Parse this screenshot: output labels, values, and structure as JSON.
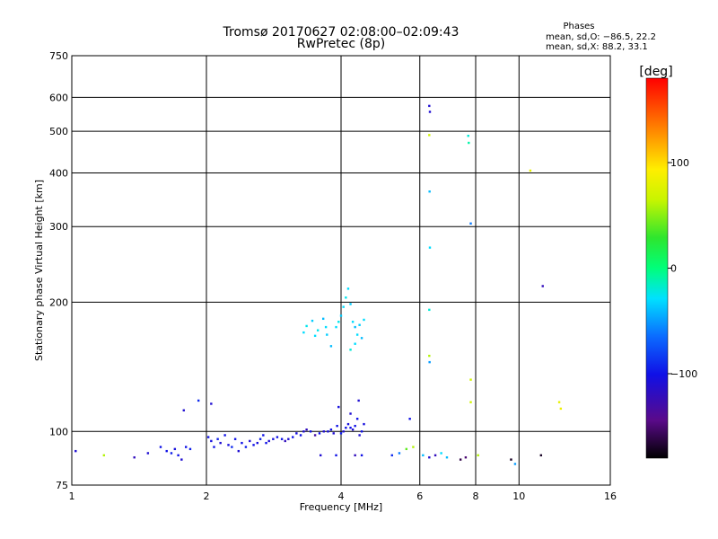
{
  "chart_data": {
    "type": "scatter",
    "title_line1": "Tromsø 20170627 02:08:00–02:09:43",
    "title_line2": "RwPretec (8p)",
    "xlabel": "Frequency [MHz]",
    "ylabel": "Stationary phase Virtual Height [km]",
    "x_scale": "log",
    "y_scale": "log",
    "xlim": [
      1,
      16
    ],
    "ylim": [
      75,
      750
    ],
    "x_ticks": [
      1,
      2,
      4,
      6,
      8,
      10,
      16
    ],
    "x_tick_labels": [
      "1",
      "2",
      "4",
      "6",
      "8",
      "10",
      "16"
    ],
    "x_grid": [
      2,
      4,
      6,
      8,
      10
    ],
    "y_ticks": [
      75,
      100,
      200,
      300,
      400,
      500,
      600,
      750
    ],
    "y_tick_labels": [
      "75",
      "100",
      "200",
      "300",
      "400",
      "500",
      "600",
      "750"
    ],
    "y_grid": [
      100,
      200,
      300,
      400,
      500,
      600
    ],
    "grid": true,
    "phases": {
      "title": "Phases",
      "line_o": "mean, sd,O: −86.5, 22.2",
      "line_x": "mean, sd,X:  88.2, 33.1"
    },
    "colorbar": {
      "label": "[deg]",
      "range": [
        -180,
        180
      ],
      "ticks": [
        100,
        0,
        -100
      ],
      "tick_labels": [
        "100",
        "0",
        "−100"
      ]
    },
    "points": [
      [
        1.02,
        90,
        -110
      ],
      [
        1.18,
        88,
        60
      ],
      [
        1.38,
        87,
        -120
      ],
      [
        1.48,
        89,
        -110
      ],
      [
        1.58,
        92,
        -100
      ],
      [
        1.63,
        90,
        -100
      ],
      [
        1.67,
        89,
        -95
      ],
      [
        1.7,
        91,
        -105
      ],
      [
        1.73,
        88,
        -100
      ],
      [
        1.76,
        86,
        -110
      ],
      [
        1.8,
        92,
        -100
      ],
      [
        1.84,
        91,
        -95
      ],
      [
        1.78,
        112,
        -110
      ],
      [
        1.92,
        118,
        -90
      ],
      [
        2.05,
        116,
        -110
      ],
      [
        2.02,
        97,
        -100
      ],
      [
        2.05,
        95,
        -105
      ],
      [
        2.08,
        92,
        -100
      ],
      [
        2.12,
        96,
        -95
      ],
      [
        2.15,
        94,
        -110
      ],
      [
        2.2,
        98,
        -100
      ],
      [
        2.24,
        93,
        -105
      ],
      [
        2.28,
        92,
        -90
      ],
      [
        2.32,
        96,
        -100
      ],
      [
        2.36,
        90,
        -110
      ],
      [
        2.4,
        94,
        -100
      ],
      [
        2.45,
        92,
        -95
      ],
      [
        2.5,
        95,
        -110
      ],
      [
        2.55,
        93,
        -100
      ],
      [
        2.6,
        94,
        -105
      ],
      [
        2.64,
        96,
        -95
      ],
      [
        2.68,
        98,
        -100
      ],
      [
        2.72,
        94,
        -100
      ],
      [
        2.76,
        95,
        -110
      ],
      [
        2.82,
        96,
        -105
      ],
      [
        2.88,
        97,
        -100
      ],
      [
        2.95,
        96,
        -100
      ],
      [
        3.0,
        95,
        -120
      ],
      [
        3.05,
        96,
        -110
      ],
      [
        3.12,
        97,
        -100
      ],
      [
        3.18,
        99,
        -105
      ],
      [
        3.25,
        98,
        -100
      ],
      [
        3.3,
        100,
        -110
      ],
      [
        3.35,
        101,
        -120
      ],
      [
        3.42,
        100,
        -100
      ],
      [
        3.5,
        98,
        -130
      ],
      [
        3.58,
        99,
        -100
      ],
      [
        3.66,
        100,
        -110
      ],
      [
        3.74,
        100,
        -105
      ],
      [
        3.8,
        101,
        -100
      ],
      [
        3.85,
        99,
        -110
      ],
      [
        3.92,
        103,
        -100
      ],
      [
        4.0,
        99,
        -95
      ],
      [
        4.05,
        100,
        -110
      ],
      [
        4.1,
        102,
        -100
      ],
      [
        4.15,
        104,
        -105
      ],
      [
        4.2,
        102,
        -100
      ],
      [
        4.25,
        101,
        -110
      ],
      [
        4.3,
        103,
        -100
      ],
      [
        4.35,
        107,
        -100
      ],
      [
        4.4,
        98,
        -110
      ],
      [
        4.45,
        100,
        -100
      ],
      [
        4.5,
        104,
        -105
      ],
      [
        4.38,
        118,
        -110
      ],
      [
        4.2,
        110,
        -110
      ],
      [
        3.95,
        114,
        -105
      ],
      [
        3.6,
        88,
        -110
      ],
      [
        3.9,
        88,
        -100
      ],
      [
        4.3,
        88,
        -120
      ],
      [
        4.45,
        88,
        -100
      ],
      [
        3.3,
        170,
        -30
      ],
      [
        3.35,
        176,
        -25
      ],
      [
        3.45,
        181,
        -35
      ],
      [
        3.5,
        167,
        -30
      ],
      [
        3.55,
        172,
        -25
      ],
      [
        3.65,
        183,
        -40
      ],
      [
        3.7,
        175,
        -30
      ],
      [
        3.72,
        168,
        -35
      ],
      [
        3.8,
        158,
        -40
      ],
      [
        3.9,
        175,
        -30
      ],
      [
        3.95,
        180,
        -25
      ],
      [
        4.0,
        186,
        -35
      ],
      [
        4.05,
        195,
        -30
      ],
      [
        4.1,
        205,
        -25
      ],
      [
        4.15,
        215,
        -30
      ],
      [
        4.2,
        198,
        -35
      ],
      [
        4.25,
        180,
        -30
      ],
      [
        4.3,
        175,
        -40
      ],
      [
        4.35,
        168,
        -30
      ],
      [
        4.4,
        177,
        -35
      ],
      [
        4.45,
        165,
        -40
      ],
      [
        4.5,
        182,
        -30
      ],
      [
        4.2,
        155,
        -20
      ],
      [
        4.3,
        160,
        -30
      ],
      [
        5.2,
        88,
        -90
      ],
      [
        5.4,
        89,
        -60
      ],
      [
        5.6,
        91,
        40
      ],
      [
        5.8,
        92,
        60
      ],
      [
        6.1,
        88,
        -40
      ],
      [
        6.3,
        87,
        -110
      ],
      [
        6.5,
        88,
        -120
      ],
      [
        6.7,
        89,
        -30
      ],
      [
        6.9,
        87,
        -40
      ],
      [
        7.4,
        86,
        -160
      ],
      [
        7.6,
        87,
        -150
      ],
      [
        8.1,
        88,
        60
      ],
      [
        9.6,
        86,
        -170
      ],
      [
        9.8,
        84,
        -50
      ],
      [
        5.7,
        107,
        -100
      ],
      [
        6.3,
        573,
        -110
      ],
      [
        6.32,
        555,
        -110
      ],
      [
        6.3,
        490,
        70
      ],
      [
        6.31,
        362,
        -40
      ],
      [
        6.32,
        268,
        -30
      ],
      [
        6.3,
        192,
        -20
      ],
      [
        6.3,
        150,
        60
      ],
      [
        6.31,
        145,
        -50
      ],
      [
        7.7,
        488,
        -20
      ],
      [
        7.72,
        470,
        -10
      ],
      [
        7.8,
        305,
        -60
      ],
      [
        7.8,
        132,
        70
      ],
      [
        7.8,
        117,
        70
      ],
      [
        10.6,
        405,
        80
      ],
      [
        11.2,
        88,
        -170
      ],
      [
        11.3,
        218,
        -120
      ],
      [
        12.3,
        117,
        80
      ],
      [
        12.4,
        113,
        85
      ]
    ]
  }
}
